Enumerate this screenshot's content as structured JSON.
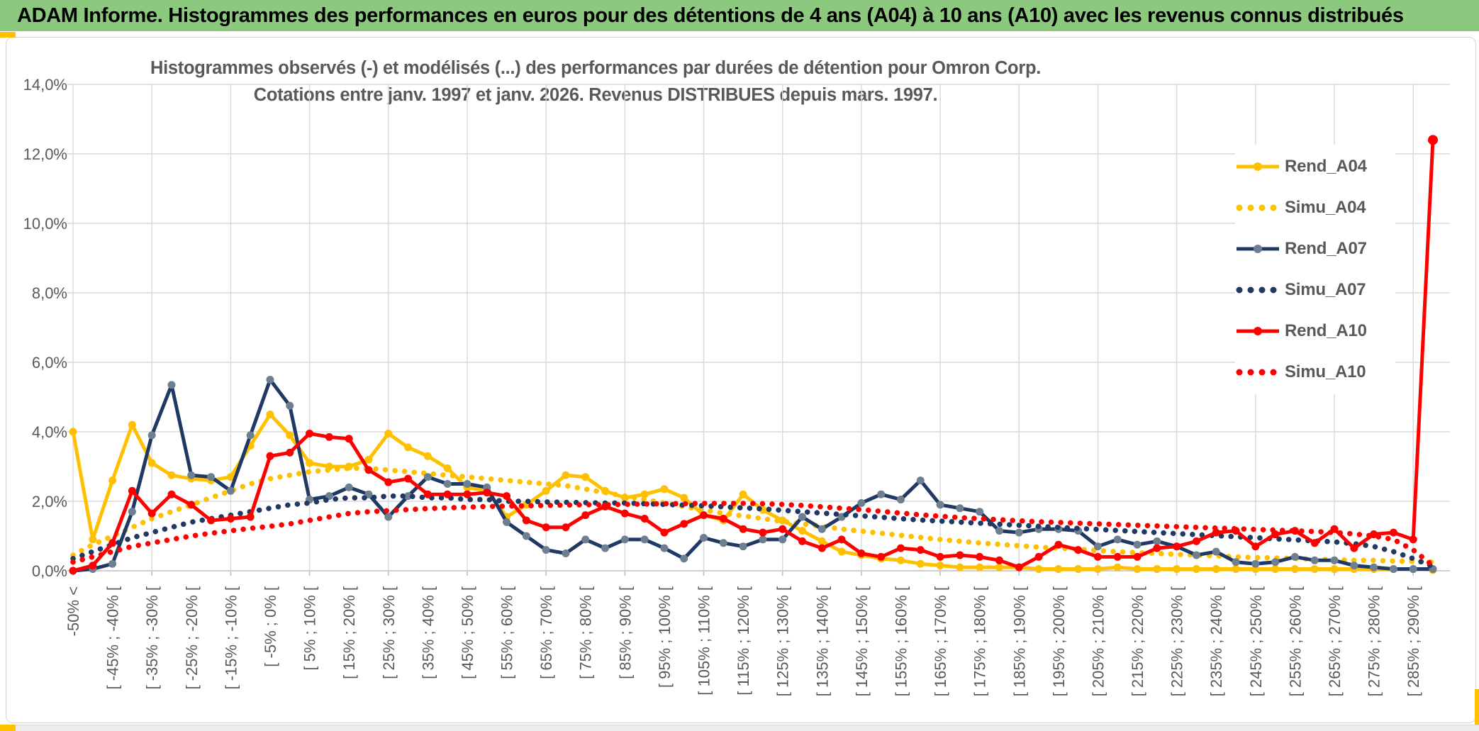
{
  "banner": {
    "title": "ADAM Informe. Histogrammes des performances en euros pour des détentions de 4 ans (A04) à 10 ans (A10) avec les revenus connus distribués"
  },
  "colors": {
    "banner_green": "#8CC87D",
    "accent_yellow": "#FFC000",
    "gold": "#FFC000",
    "navy": "#1F3864",
    "navy_marker": "#6E7F90",
    "red": "#FF0000",
    "text_gray": "#595959",
    "grid": "#D9D9D9",
    "axis": "#BFBFBF"
  },
  "chart_data": {
    "type": "line",
    "title_line1": "Histogrammes observés (-) et modélisés (...) des performances par durées de détention pour Omron Corp.",
    "title_line2": "Cotations entre janv. 1997 et janv. 2026. Revenus DISTRIBUES depuis mars. 1997.",
    "ylim": [
      0,
      14
    ],
    "ytick_step": 2,
    "ytick_labels": [
      "0,0%",
      "2,0%",
      "4,0%",
      "6,0%",
      "8,0%",
      "10,0%",
      "12,0%",
      "14,0%"
    ],
    "grid": true,
    "legend_position": "right-inside",
    "categories": [
      "-50% <",
      "",
      "[ -45% ; -40% [",
      "",
      "[ -35% ; -30% [",
      "",
      "[ -25% ; -20% [",
      "",
      "[ -15% ; -10% [",
      "",
      "[ -5% ; 0% [",
      "",
      "[ 5% ; 10% [",
      "",
      "[ 15% ; 20% [",
      "",
      "[ 25% ; 30% [",
      "",
      "[ 35% ; 40% [",
      "",
      "[ 45% ; 50% [",
      "",
      "[ 55% ; 60% [",
      "",
      "[ 65% ; 70% [",
      "",
      "[ 75% ; 80% [",
      "",
      "[ 85% ; 90% [",
      "",
      "[ 95% ; 100% [",
      "",
      "[ 105% ; 110% [",
      "",
      "[ 115% ; 120% [",
      "",
      "[ 125% ; 130% [",
      "",
      "[ 135% ; 140% [",
      "",
      "[ 145% ; 150% [",
      "",
      "[ 155% ; 160% [",
      "",
      "[ 165% ; 170% [",
      "",
      "[ 175% ; 180% [",
      "",
      "[ 185% ; 190% [",
      "",
      "[ 195% ; 200% [",
      "",
      "[ 205% ; 210% [",
      "",
      "[ 215% ; 220% [",
      "",
      "[ 225% ; 230% [",
      "",
      "[ 235% ; 240% [",
      "",
      "[ 245% ; 250% [",
      "",
      "[ 255% ; 260% [",
      "",
      "[ 265% ; 270% [",
      "",
      "[ 275% ; 280% [",
      "",
      "[ 285% ; 290% [",
      ""
    ],
    "series": [
      {
        "name": "Rend_A04",
        "style": "solid",
        "color": "#FFC000",
        "marker_color": "#FFC000",
        "values": [
          4.0,
          0.9,
          2.6,
          4.2,
          3.1,
          2.75,
          2.65,
          2.6,
          2.7,
          3.6,
          4.5,
          3.9,
          3.1,
          3.0,
          3.0,
          3.2,
          3.95,
          3.55,
          3.3,
          2.95,
          2.4,
          2.3,
          1.55,
          1.9,
          2.3,
          2.75,
          2.7,
          2.3,
          2.1,
          2.2,
          2.35,
          2.1,
          1.6,
          1.45,
          2.2,
          1.75,
          1.45,
          1.15,
          0.85,
          0.55,
          0.45,
          0.35,
          0.3,
          0.2,
          0.15,
          0.1,
          0.1,
          0.1,
          0.1,
          0.05,
          0.05,
          0.05,
          0.05,
          0.1,
          0.05,
          0.05,
          0.05,
          0.05,
          0.05,
          0.05,
          0.05,
          0.05,
          0.05,
          0.05,
          0.05,
          0.05,
          0.05,
          0.05,
          0.05,
          0.02
        ]
      },
      {
        "name": "Simu_A04",
        "style": "dotted",
        "color": "#FFC000",
        "values": [
          0.45,
          0.75,
          1.0,
          1.25,
          1.5,
          1.7,
          1.9,
          2.1,
          2.3,
          2.5,
          2.65,
          2.75,
          2.85,
          2.9,
          2.95,
          2.95,
          2.9,
          2.85,
          2.8,
          2.75,
          2.7,
          2.65,
          2.6,
          2.55,
          2.5,
          2.45,
          2.35,
          2.25,
          2.15,
          2.05,
          1.95,
          1.85,
          1.75,
          1.65,
          1.58,
          1.5,
          1.42,
          1.35,
          1.28,
          1.2,
          1.14,
          1.08,
          1.02,
          0.96,
          0.9,
          0.85,
          0.8,
          0.76,
          0.72,
          0.68,
          0.65,
          0.62,
          0.58,
          0.55,
          0.52,
          0.5,
          0.47,
          0.45,
          0.43,
          0.4,
          0.38,
          0.37,
          0.35,
          0.33,
          0.32,
          0.3,
          0.3,
          0.28,
          0.27,
          0.25
        ]
      },
      {
        "name": "Rend_A07",
        "style": "solid",
        "color": "#1F3864",
        "marker_color": "#6E7F90",
        "values": [
          0.0,
          0.05,
          0.2,
          1.7,
          3.9,
          5.35,
          2.75,
          2.7,
          2.3,
          3.9,
          5.5,
          4.75,
          2.05,
          2.15,
          2.4,
          2.2,
          1.55,
          2.15,
          2.7,
          2.5,
          2.5,
          2.4,
          1.4,
          1.0,
          0.6,
          0.5,
          0.9,
          0.65,
          0.9,
          0.9,
          0.65,
          0.35,
          0.95,
          0.8,
          0.7,
          0.9,
          0.9,
          1.55,
          1.2,
          1.55,
          1.95,
          2.2,
          2.05,
          2.6,
          1.9,
          1.8,
          1.7,
          1.15,
          1.1,
          1.2,
          1.2,
          1.15,
          0.7,
          0.9,
          0.75,
          0.85,
          0.7,
          0.45,
          0.55,
          0.25,
          0.2,
          0.25,
          0.4,
          0.3,
          0.3,
          0.15,
          0.1,
          0.05,
          0.05,
          0.05
        ]
      },
      {
        "name": "Simu_A07",
        "style": "dotted",
        "color": "#1F3864",
        "values": [
          0.35,
          0.55,
          0.75,
          0.95,
          1.1,
          1.25,
          1.4,
          1.5,
          1.6,
          1.7,
          1.8,
          1.9,
          1.95,
          2.05,
          2.1,
          2.1,
          2.15,
          2.15,
          2.1,
          2.1,
          2.05,
          2.05,
          2.0,
          2.0,
          1.98,
          1.97,
          1.96,
          1.95,
          1.95,
          1.93,
          1.91,
          1.89,
          1.87,
          1.84,
          1.81,
          1.78,
          1.74,
          1.7,
          1.66,
          1.62,
          1.58,
          1.54,
          1.5,
          1.46,
          1.43,
          1.4,
          1.37,
          1.34,
          1.31,
          1.28,
          1.25,
          1.22,
          1.19,
          1.16,
          1.13,
          1.1,
          1.07,
          1.04,
          1.01,
          0.98,
          0.95,
          0.92,
          0.89,
          0.86,
          0.83,
          0.78,
          0.7,
          0.55,
          0.35,
          0.12
        ]
      },
      {
        "name": "Rend_A10",
        "style": "solid",
        "color": "#FF0000",
        "marker_color": "#FF0000",
        "values": [
          0.0,
          0.15,
          0.8,
          2.3,
          1.65,
          2.2,
          1.9,
          1.45,
          1.5,
          1.55,
          3.3,
          3.4,
          3.95,
          3.85,
          3.8,
          2.9,
          2.55,
          2.65,
          2.2,
          2.2,
          2.2,
          2.25,
          2.15,
          1.45,
          1.25,
          1.25,
          1.6,
          1.85,
          1.65,
          1.5,
          1.1,
          1.35,
          1.6,
          1.5,
          1.2,
          1.1,
          1.2,
          0.85,
          0.65,
          0.9,
          0.5,
          0.4,
          0.65,
          0.6,
          0.4,
          0.45,
          0.4,
          0.3,
          0.1,
          0.4,
          0.75,
          0.6,
          0.4,
          0.4,
          0.4,
          0.65,
          0.7,
          0.85,
          1.1,
          1.15,
          0.7,
          1.05,
          1.15,
          0.8,
          1.2,
          0.65,
          1.05,
          1.1,
          0.9,
          12.4
        ]
      },
      {
        "name": "Simu_A10",
        "style": "dotted",
        "color": "#FF0000",
        "values": [
          0.25,
          0.4,
          0.55,
          0.7,
          0.8,
          0.9,
          1.0,
          1.08,
          1.15,
          1.22,
          1.28,
          1.35,
          1.45,
          1.55,
          1.65,
          1.7,
          1.73,
          1.76,
          1.79,
          1.81,
          1.83,
          1.85,
          1.86,
          1.87,
          1.88,
          1.89,
          1.9,
          1.9,
          1.91,
          1.92,
          1.93,
          1.93,
          1.94,
          1.94,
          1.94,
          1.93,
          1.91,
          1.88,
          1.84,
          1.8,
          1.76,
          1.71,
          1.66,
          1.61,
          1.57,
          1.53,
          1.5,
          1.47,
          1.44,
          1.41,
          1.39,
          1.37,
          1.35,
          1.33,
          1.31,
          1.29,
          1.27,
          1.25,
          1.23,
          1.21,
          1.19,
          1.17,
          1.15,
          1.13,
          1.1,
          1.06,
          1.0,
          0.9,
          0.6,
          0.15
        ]
      }
    ]
  }
}
